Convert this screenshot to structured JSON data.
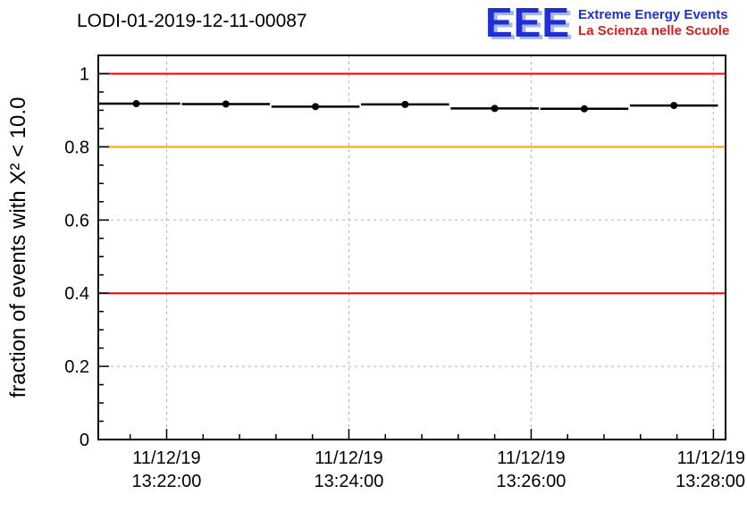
{
  "page": {
    "background": "#ffffff"
  },
  "logo": {
    "acronym": "EEE",
    "subtitle_line1": "Extreme Energy Events",
    "subtitle_line2": "La Scienza nelle Scuole",
    "acronym_color": "#1e2fd4",
    "acronym_shadow_color": "#aab6e8",
    "subtitle_line1_color": "#1e2fd4",
    "subtitle_line2_color": "#d42020"
  },
  "chart_data": {
    "type": "scatter",
    "title": "LODI-01-2019-12-11-00087",
    "ylabel": "fraction of events with X² < 10.0",
    "xlabel": "",
    "ylim": [
      0,
      1.05
    ],
    "grid": {
      "on": true,
      "color": "#b4b4b4",
      "dash": "3,4"
    },
    "yticks": {
      "values": [
        0,
        0.2,
        0.4,
        0.6,
        0.8,
        1
      ],
      "labels": [
        "0",
        "0.2",
        "0.4",
        "0.6",
        "0.8",
        "1"
      ],
      "minor_step": 0.05
    },
    "xaxis": {
      "unit": "seconds after 13:20:00 on 11/12/19",
      "range": [
        75,
        488
      ],
      "major_ticks": [
        120,
        240,
        360,
        480
      ],
      "tick_labels": [
        {
          "date": "11/12/19",
          "time": "13:22:00"
        },
        {
          "date": "11/12/19",
          "time": "13:24:00"
        },
        {
          "date": "11/12/19",
          "time": "13:26:00"
        },
        {
          "date": "11/12/19",
          "time": "13:28:00"
        }
      ],
      "minor_step": 24
    },
    "reference_lines": [
      {
        "y": 1.0,
        "color": "#ff0000"
      },
      {
        "y": 0.8,
        "color": "#ffa500"
      },
      {
        "y": 0.4,
        "color": "#ff0000"
      }
    ],
    "series": [
      {
        "name": "fraction of events with chi2 < 10.0",
        "color": "#000000",
        "marker": "circle",
        "points": [
          {
            "t": 100,
            "y": 0.918,
            "xerr": 29
          },
          {
            "t": 159,
            "y": 0.917,
            "xerr": 29
          },
          {
            "t": 218,
            "y": 0.91,
            "xerr": 29
          },
          {
            "t": 277,
            "y": 0.916,
            "xerr": 29
          },
          {
            "t": 336,
            "y": 0.905,
            "xerr": 29
          },
          {
            "t": 395,
            "y": 0.904,
            "xerr": 29
          },
          {
            "t": 454,
            "y": 0.913,
            "xerr": 29
          }
        ]
      }
    ]
  }
}
